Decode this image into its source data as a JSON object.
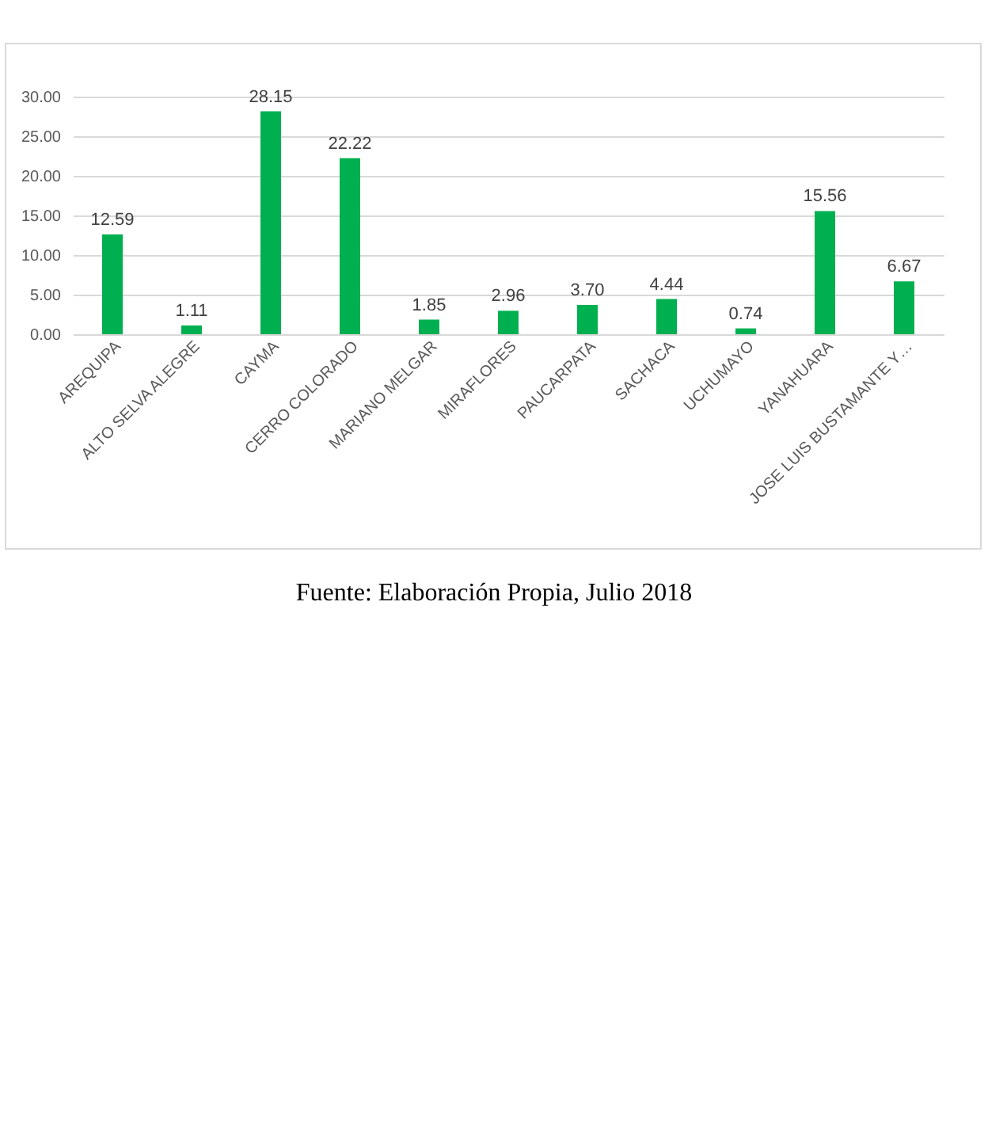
{
  "chart_data": {
    "type": "bar",
    "categories": [
      "AREQUIPA",
      "ALTO SELVA ALEGRE",
      "CAYMA",
      "CERRO COLORADO",
      "MARIANO MELGAR",
      "MIRAFLORES",
      "PAUCARPATA",
      "SACHACA",
      "UCHUMAYO",
      "YANAHUARA",
      "JOSE LUIS BUSTAMANTE Y…"
    ],
    "values": [
      12.59,
      1.11,
      28.15,
      22.22,
      1.85,
      2.96,
      3.7,
      4.44,
      0.74,
      15.56,
      6.67
    ],
    "color": "#00b050",
    "ylim": [
      0,
      30
    ],
    "yticks": [
      {
        "value": 0,
        "label": "0.00"
      },
      {
        "value": 5,
        "label": "5.00"
      },
      {
        "value": 10,
        "label": "10.00"
      },
      {
        "value": 15,
        "label": "15.00"
      },
      {
        "value": 20,
        "label": "20.00"
      },
      {
        "value": 25,
        "label": "25.00"
      },
      {
        "value": 30,
        "label": "30.00"
      }
    ],
    "grid": "y",
    "value_labels": [
      "12.59",
      "1.11",
      "28.15",
      "22.22",
      "1.85",
      "2.96",
      "3.70",
      "4.44",
      "0.74",
      "15.56",
      "6.67"
    ],
    "annotations": [
      "Fuente: Elaboración Propia, Julio 2018"
    ]
  }
}
